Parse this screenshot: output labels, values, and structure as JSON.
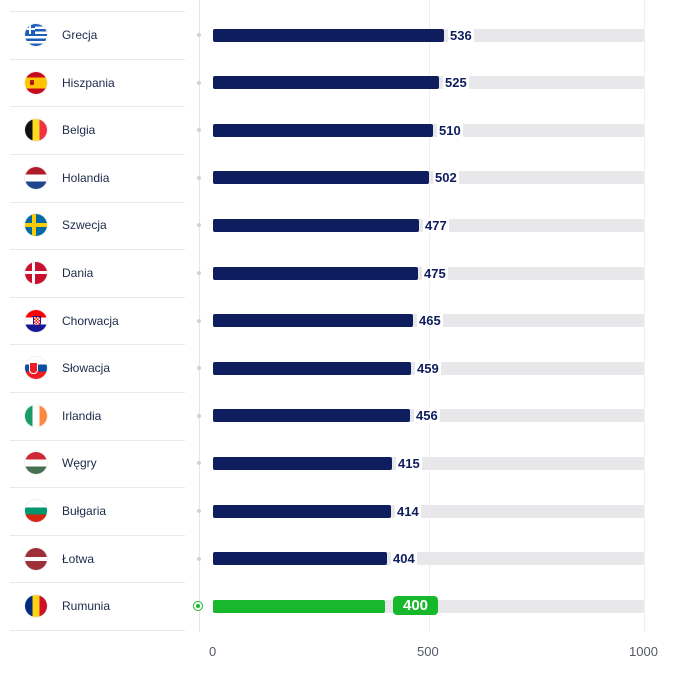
{
  "chart_data": {
    "type": "bar",
    "orientation": "horizontal",
    "title": "",
    "xlabel": "",
    "ylabel": "",
    "xlim": [
      0,
      1000
    ],
    "xticks": [
      "0",
      "500",
      "1000"
    ],
    "grid": true,
    "categories": [
      "Grecja",
      "Hiszpania",
      "Belgia",
      "Holandia",
      "Szwecja",
      "Dania",
      "Chorwacja",
      "Słowacja",
      "Irlandia",
      "Węgry",
      "Bułgaria",
      "Łotwa",
      "Rumunia"
    ],
    "values": [
      536,
      525,
      510,
      502,
      477,
      475,
      465,
      459,
      456,
      415,
      414,
      404,
      400
    ],
    "highlight": "Rumunia",
    "colors": {
      "bar": "#0e1d5e",
      "highlight": "#17b82c",
      "track": "#e8e8ea"
    },
    "flag_icons": [
      "greece-flag-icon",
      "spain-flag-icon",
      "belgium-flag-icon",
      "netherlands-flag-icon",
      "sweden-flag-icon",
      "denmark-flag-icon",
      "croatia-flag-icon",
      "slovakia-flag-icon",
      "ireland-flag-icon",
      "hungary-flag-icon",
      "bulgaria-flag-icon",
      "latvia-flag-icon",
      "romania-flag-icon"
    ]
  }
}
